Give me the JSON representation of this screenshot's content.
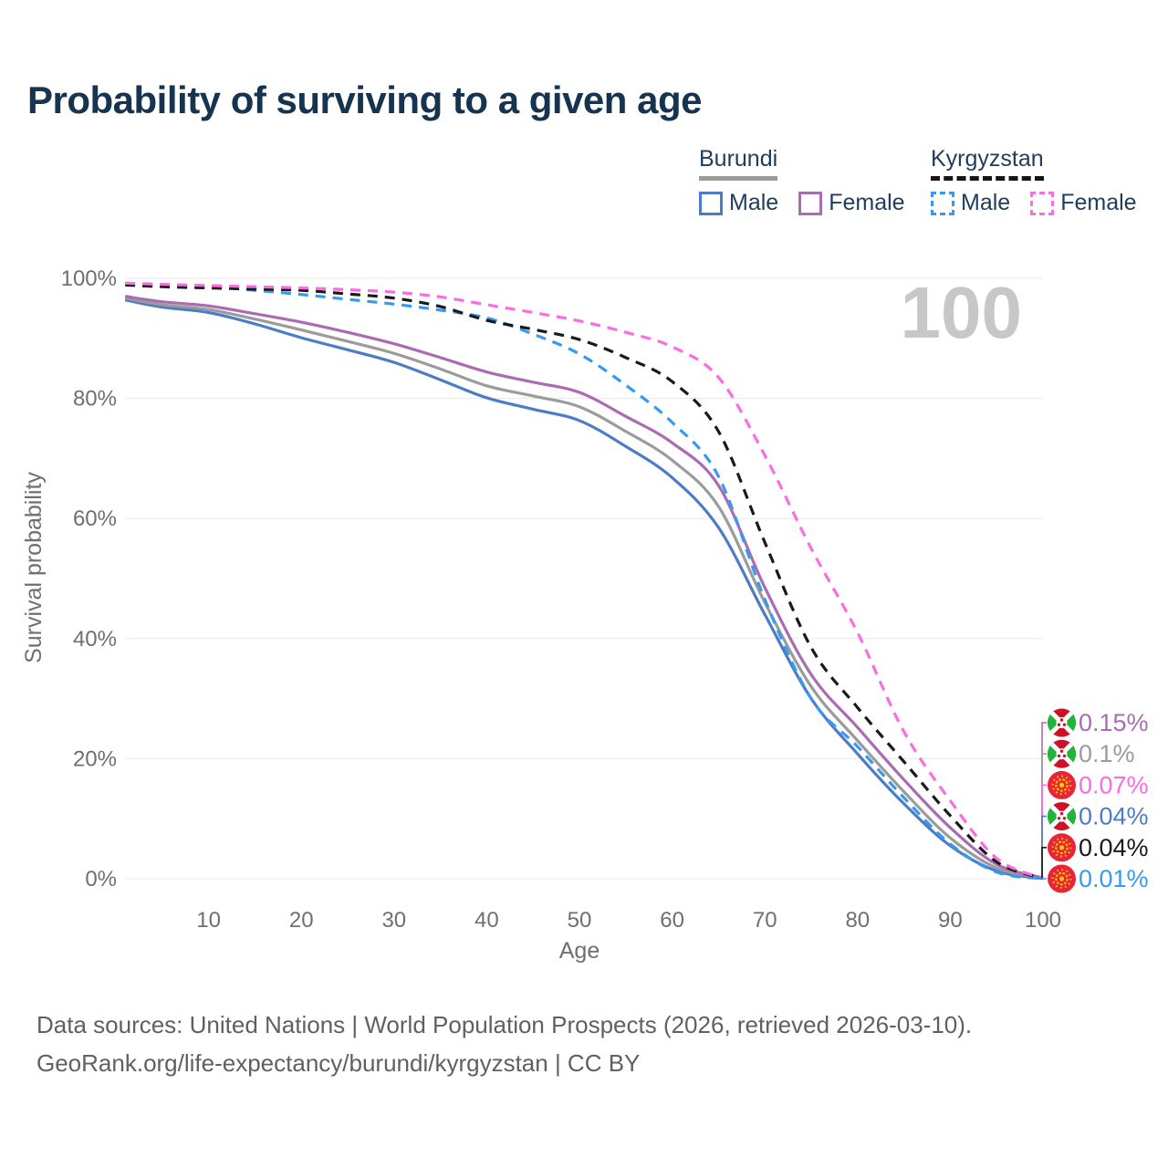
{
  "header": {
    "title": "Probability of surviving to a given age"
  },
  "legend": {
    "groups": [
      {
        "name": "Burundi",
        "line_style": "solid",
        "underline_color": "#9b9b9b",
        "items": [
          {
            "label": "Male",
            "color": "#4d7cc7"
          },
          {
            "label": "Female",
            "color": "#ab6bb3"
          }
        ]
      },
      {
        "name": "Kyrgyzstan",
        "line_style": "dashed",
        "underline_color": "#161616",
        "items": [
          {
            "label": "Male",
            "color": "#379af2"
          },
          {
            "label": "Female",
            "color": "#fb6ce0"
          }
        ]
      }
    ]
  },
  "chart_data": {
    "type": "line",
    "title": "Probability of surviving to a given age",
    "xlabel": "Age",
    "ylabel": "Survival probability",
    "xlim": [
      0,
      100
    ],
    "ylim": [
      0,
      100
    ],
    "x_ticks": [
      10,
      20,
      30,
      40,
      50,
      60,
      70,
      80,
      90,
      100
    ],
    "y_ticks": [
      0,
      20,
      40,
      60,
      80,
      100
    ],
    "y_tick_suffix": "%",
    "grid": "horizontal",
    "legend_position": "top-right",
    "watermark": "100",
    "x": [
      1,
      5,
      10,
      15,
      20,
      25,
      30,
      35,
      40,
      45,
      50,
      55,
      60,
      65,
      70,
      75,
      80,
      85,
      90,
      95,
      100
    ],
    "series": [
      {
        "id": "burundi-male",
        "name": "Burundi Male",
        "country": "Burundi",
        "sex": "Male",
        "style": "solid",
        "color": "#4d7cc7",
        "values": [
          96.4,
          95.2,
          94.3,
          92.4,
          90.1,
          88.1,
          86.0,
          83.1,
          80.1,
          78.2,
          76.3,
          72.0,
          66.8,
          58.5,
          44.0,
          30.0,
          20.8,
          12.5,
          5.5,
          1.3,
          0.04
        ]
      },
      {
        "id": "burundi-both-sexes",
        "name": "Burundi Both sexes",
        "country": "Burundi",
        "sex": "Both",
        "style": "solid",
        "color": "#9b9b9b",
        "values": [
          96.7,
          95.6,
          94.8,
          93.2,
          91.4,
          89.5,
          87.5,
          84.9,
          82.1,
          80.4,
          78.6,
          74.5,
          69.7,
          62.0,
          46.0,
          32.0,
          23.0,
          14.5,
          6.8,
          1.8,
          0.1
        ]
      },
      {
        "id": "burundi-female",
        "name": "Burundi Female",
        "country": "Burundi",
        "sex": "Female",
        "style": "solid",
        "color": "#ab6bb3",
        "values": [
          97.0,
          96.1,
          95.4,
          94.1,
          92.7,
          91.0,
          89.1,
          86.8,
          84.4,
          82.7,
          81.0,
          77.0,
          72.6,
          65.5,
          48.5,
          34.0,
          25.2,
          16.5,
          8.5,
          2.4,
          0.15
        ]
      },
      {
        "id": "kyrgyzstan-male",
        "name": "Kyrgyzstan Male",
        "country": "Kyrgyzstan",
        "sex": "Male",
        "style": "dashed",
        "color": "#379af2",
        "values": [
          99.0,
          98.8,
          98.6,
          98.0,
          97.3,
          96.5,
          95.7,
          94.7,
          93.4,
          90.7,
          87.4,
          82.2,
          76.0,
          67.0,
          46.5,
          30.0,
          22.0,
          13.5,
          5.8,
          1.1,
          0.01
        ]
      },
      {
        "id": "kyrgyzstan-both-sexes",
        "name": "Kyrgyzstan Both sexes",
        "country": "Kyrgyzstan",
        "sex": "Both",
        "style": "dashed",
        "color": "#1a1a1a",
        "values": [
          98.9,
          98.6,
          98.4,
          98.2,
          98.0,
          97.4,
          96.7,
          95.3,
          93.0,
          91.5,
          89.8,
          86.8,
          82.8,
          74.5,
          56.0,
          38.5,
          28.5,
          19.5,
          10.5,
          2.8,
          0.04
        ]
      },
      {
        "id": "kyrgyzstan-female",
        "name": "Kyrgyzstan Female",
        "country": "Kyrgyzstan",
        "sex": "Female",
        "style": "dashed",
        "color": "#fb6ce0",
        "values": [
          99.2,
          99.0,
          98.8,
          98.6,
          98.4,
          98.1,
          97.7,
          96.9,
          95.6,
          94.3,
          92.9,
          91.0,
          88.6,
          83.5,
          70.5,
          55.0,
          41.0,
          24.5,
          13.0,
          3.4,
          0.07
        ]
      }
    ],
    "end_labels": [
      {
        "text": "0.15%",
        "value": 0.15,
        "color": "#ab6bb3",
        "flag": "burundi",
        "series": "Burundi Female"
      },
      {
        "text": "0.1%",
        "value": 0.1,
        "color": "#9b9b9b",
        "flag": "burundi",
        "series": "Burundi Both sexes"
      },
      {
        "text": "0.07%",
        "value": 0.07,
        "color": "#fb6ce0",
        "flag": "kyrgyzstan",
        "series": "Kyrgyzstan Female"
      },
      {
        "text": "0.04%",
        "value": 0.04,
        "color": "#4d7cc7",
        "flag": "burundi",
        "series": "Burundi Male"
      },
      {
        "text": "0.04%",
        "value": 0.04,
        "color": "#1a1a1a",
        "flag": "kyrgyzstan",
        "series": "Kyrgyzstan Both sexes"
      },
      {
        "text": "0.01%",
        "value": 0.01,
        "color": "#379af2",
        "flag": "kyrgyzstan",
        "series": "Kyrgyzstan Male"
      }
    ]
  },
  "footer": {
    "line1": "Data sources: United Nations | World Population Prospects (2026, retrieved 2026-03-10).",
    "line2": "GeoRank.org/life-expectancy/burundi/kyrgyzstan | CC BY"
  }
}
